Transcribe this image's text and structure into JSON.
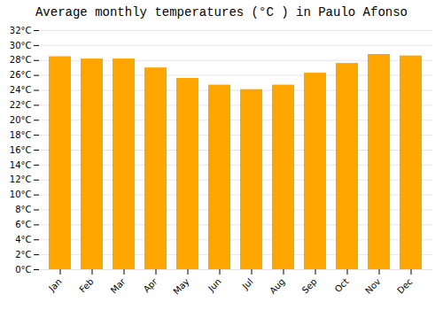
{
  "chart_data": {
    "type": "bar",
    "title": "Average monthly temperatures (°C ) in Paulo Afonso",
    "categories": [
      "Jan",
      "Feb",
      "Mar",
      "Apr",
      "May",
      "Jun",
      "Jul",
      "Aug",
      "Sep",
      "Oct",
      "Nov",
      "Dec"
    ],
    "values": [
      28.5,
      28.2,
      28.2,
      27.0,
      25.6,
      24.7,
      24.1,
      24.7,
      26.3,
      27.6,
      28.8,
      28.6
    ],
    "color": "#FFA500",
    "ylim": [
      0,
      32
    ],
    "yticks": [
      {
        "value": 0,
        "label": "0°C"
      },
      {
        "value": 2,
        "label": "2°C"
      },
      {
        "value": 4,
        "label": "4°C"
      },
      {
        "value": 6,
        "label": "6°C"
      },
      {
        "value": 8,
        "label": "8°C"
      },
      {
        "value": 10,
        "label": "10°C"
      },
      {
        "value": 12,
        "label": "12°C"
      },
      {
        "value": 14,
        "label": "14°C"
      },
      {
        "value": 16,
        "label": "16°C"
      },
      {
        "value": 18,
        "label": "18°C"
      },
      {
        "value": 20,
        "label": "20°C"
      },
      {
        "value": 22,
        "label": "22°C"
      },
      {
        "value": 24,
        "label": "24°C"
      },
      {
        "value": 26,
        "label": "26°C"
      },
      {
        "value": 28,
        "label": "28°C"
      },
      {
        "value": 30,
        "label": "30°C"
      },
      {
        "value": 32,
        "label": "32°C"
      }
    ],
    "grid": true
  }
}
